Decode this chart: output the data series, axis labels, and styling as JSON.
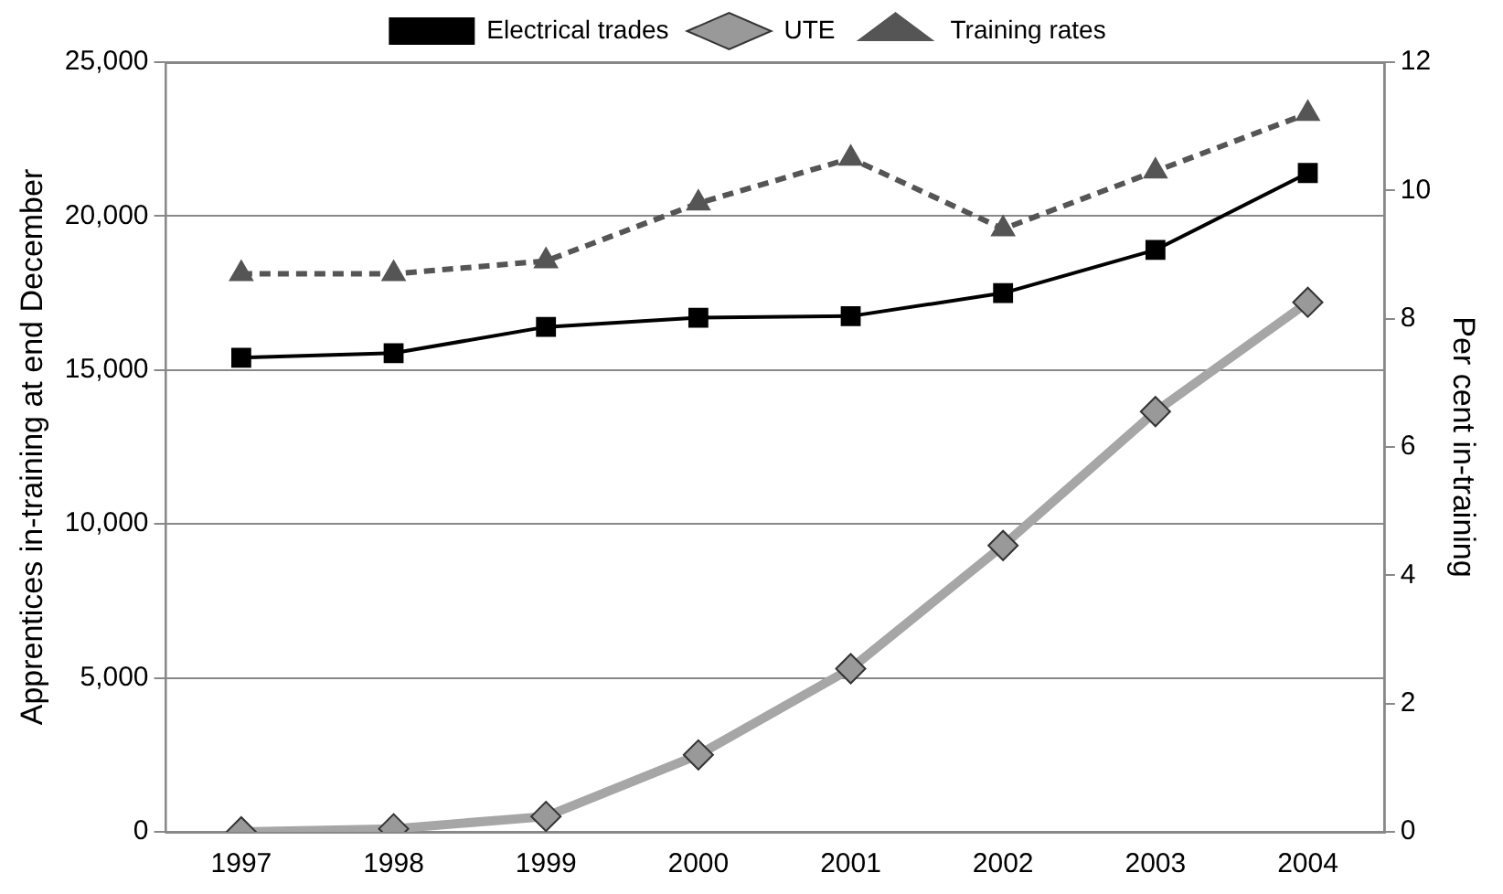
{
  "chart_data": {
    "type": "line",
    "xlabel": null,
    "ylabel": "Apprentices in-training at end December",
    "y2label": "Per cent in-training",
    "categories": [
      "1997",
      "1998",
      "1999",
      "2000",
      "2001",
      "2002",
      "2003",
      "2004"
    ],
    "series": [
      {
        "name": "Electrical trades",
        "color": "#000000",
        "marker": "square",
        "line_style": "solid",
        "values": [
          15400,
          15550,
          16400,
          16700,
          16750,
          17500,
          18900,
          21400
        ]
      },
      {
        "name": "UTE",
        "color": "#a6a6a6",
        "marker": "diamond",
        "line_style": "solid",
        "values": [
          0,
          100,
          500,
          2500,
          5300,
          9300,
          13650,
          17200
        ]
      },
      {
        "name": "Training rates",
        "color": "#555555",
        "marker": "triangle",
        "line_style": "dashed",
        "axis": "y2",
        "values": [
          8.7,
          8.7,
          8.9,
          9.8,
          10.5,
          9.4,
          10.3,
          11.2
        ]
      }
    ],
    "ylim": [
      0,
      25000
    ],
    "yticks": [
      0,
      {
        "value": 5000,
        "label": "5,000"
      },
      {
        "value": 10000,
        "label": "10,000"
      },
      {
        "value": 15000,
        "label": "15,000"
      },
      {
        "value": 20000,
        "label": "20,000"
      },
      {
        "value": 25000,
        "label": "25,000"
      }
    ],
    "y2lim": [
      0,
      12
    ],
    "y2ticks": [
      0,
      2,
      4,
      6,
      8,
      10,
      12
    ],
    "grid": "y",
    "legend": "top"
  }
}
